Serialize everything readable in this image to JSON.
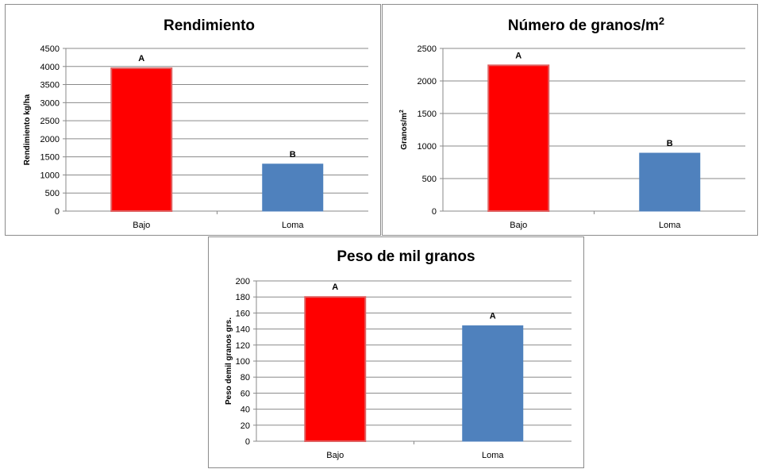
{
  "chart_data": [
    {
      "type": "bar",
      "title": "Rendimiento",
      "ylabel": "Rendimiento kg/ha",
      "xlabel": "",
      "categories": [
        "Bajo",
        "Loma"
      ],
      "values": [
        3950,
        1300
      ],
      "labels": [
        "A",
        "B"
      ],
      "colors": [
        "#ff0000",
        "#4f81bd"
      ],
      "ylim": [
        0,
        4500
      ],
      "ytick_step": 500,
      "grid": true
    },
    {
      "type": "bar",
      "title": "Número de granos/m",
      "title_sup": "2",
      "ylabel": "Granos/m",
      "ylabel_sup": "2",
      "xlabel": "",
      "categories": [
        "Bajo",
        "Loma"
      ],
      "values": [
        2240,
        890
      ],
      "labels": [
        "A",
        "B"
      ],
      "colors": [
        "#ff0000",
        "#4f81bd"
      ],
      "ylim": [
        0,
        2500
      ],
      "ytick_step": 500,
      "grid": true
    },
    {
      "type": "bar",
      "title": "Peso de mil granos",
      "ylabel": "Peso demil granos grs.",
      "xlabel": "",
      "categories": [
        "Bajo",
        "Loma"
      ],
      "values": [
        180,
        144
      ],
      "labels": [
        "A",
        "A"
      ],
      "colors": [
        "#ff0000",
        "#4f81bd"
      ],
      "ylim": [
        0,
        200
      ],
      "ytick_step": 20,
      "grid": true
    }
  ]
}
